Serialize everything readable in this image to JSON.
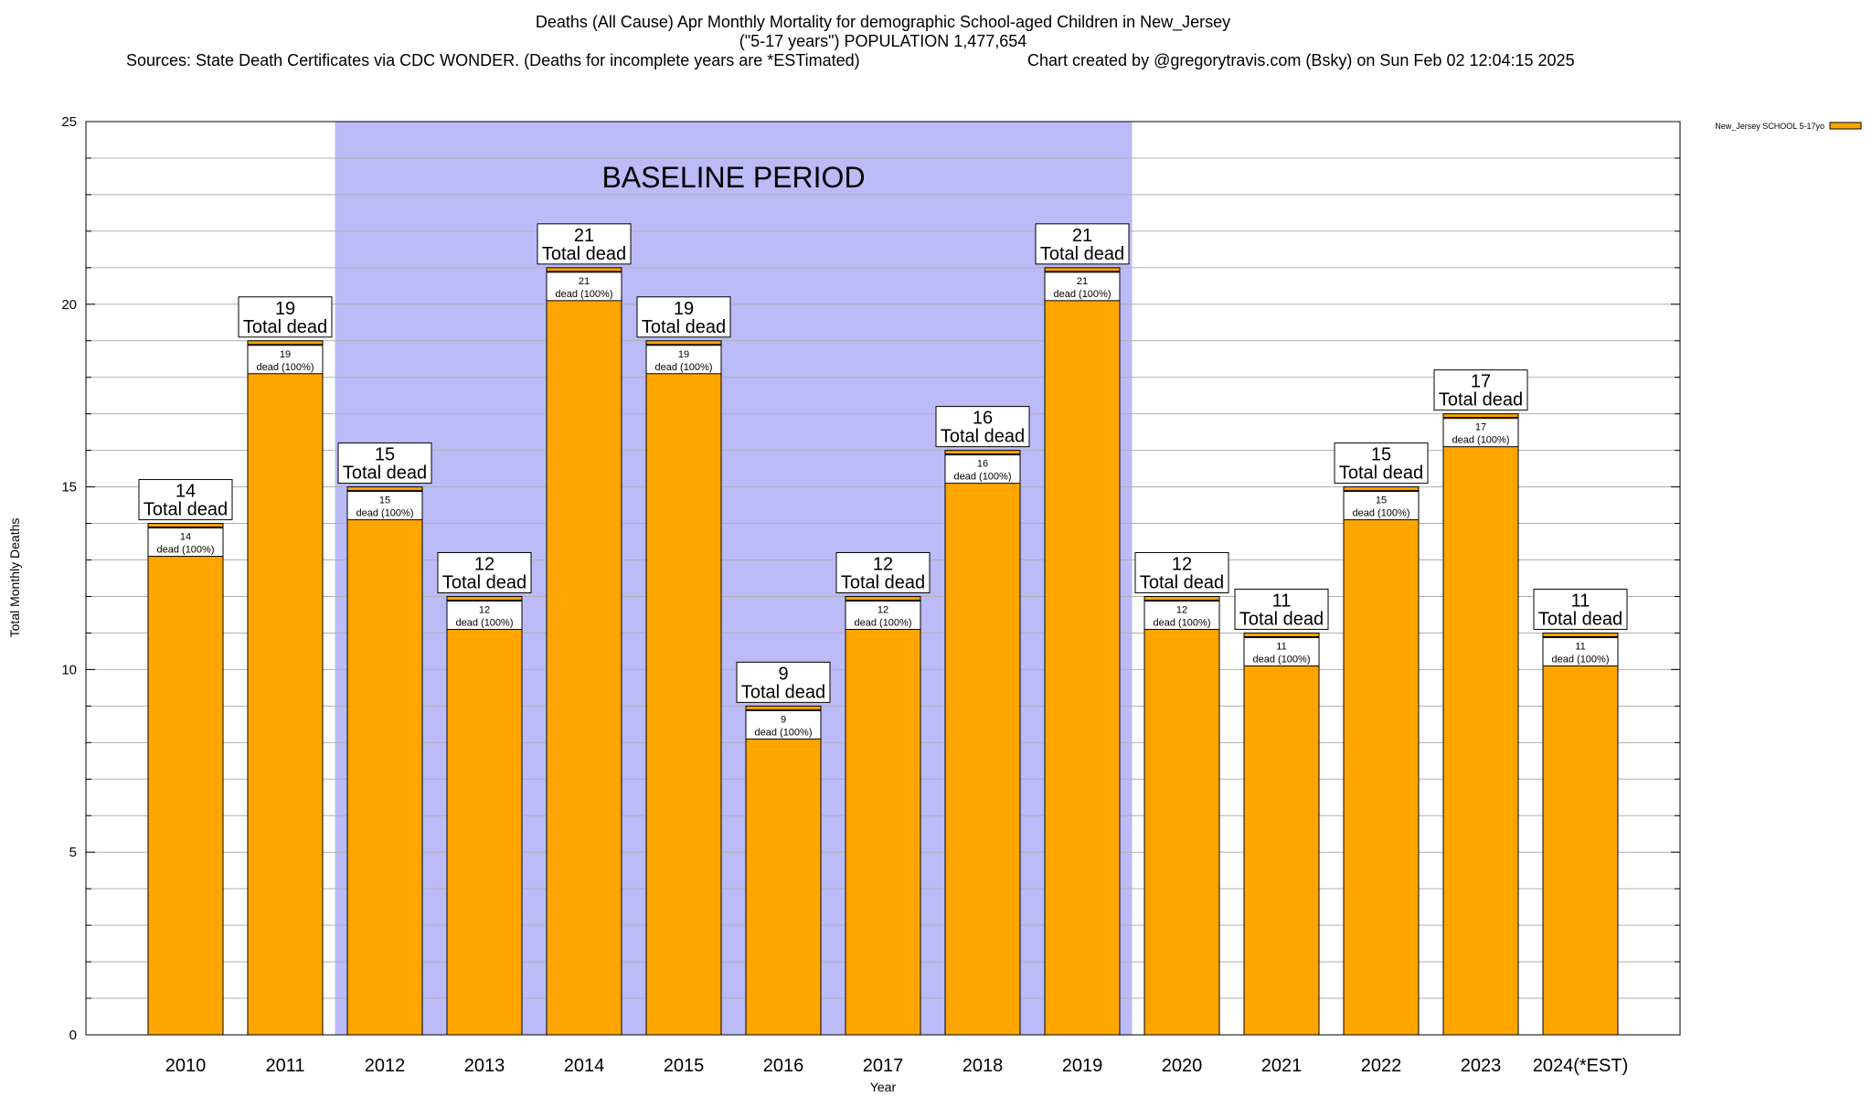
{
  "colors": {
    "bar": "#ffa500",
    "baseline_band": "#bbbbf8",
    "grid": "#b0b0b0",
    "axis": "#000000"
  },
  "chart_data": {
    "type": "bar",
    "title_lines": [
      "Deaths (All Cause) Apr Monthly Mortality for demographic School-aged Children in New_Jersey",
      "(\"5-17 years\") POPULATION 1,477,654"
    ],
    "sources_text": "Sources: State Death Certificates via CDC WONDER. (Deaths for incomplete years are *ESTimated)",
    "credit_text": "Chart created by @gregorytravis.com (Bsky) on Sun Feb 02 12:04:15 2025",
    "xlabel": "Year",
    "ylabel": "Total Monthly Deaths",
    "ylim": [
      0,
      25
    ],
    "yticks": [
      0,
      5,
      10,
      15,
      20,
      25
    ],
    "grid": "horizontal minor lines every 1",
    "legend_label": "New_Jersey SCHOOL 5-17yo",
    "legend_position": "top-right",
    "categories": [
      "2010",
      "2011",
      "2012",
      "2013",
      "2014",
      "2015",
      "2016",
      "2017",
      "2018",
      "2019",
      "2020",
      "2021",
      "2022",
      "2023",
      "2024(*EST)"
    ],
    "values": [
      14,
      19,
      15,
      12,
      21,
      19,
      9,
      12,
      16,
      21,
      12,
      11,
      15,
      17,
      11
    ],
    "total_label": "Total dead",
    "inner_label": "dead (100%)",
    "baseline": {
      "label": "BASELINE PERIOD",
      "from_category": "2012",
      "to_category": "2019"
    }
  }
}
